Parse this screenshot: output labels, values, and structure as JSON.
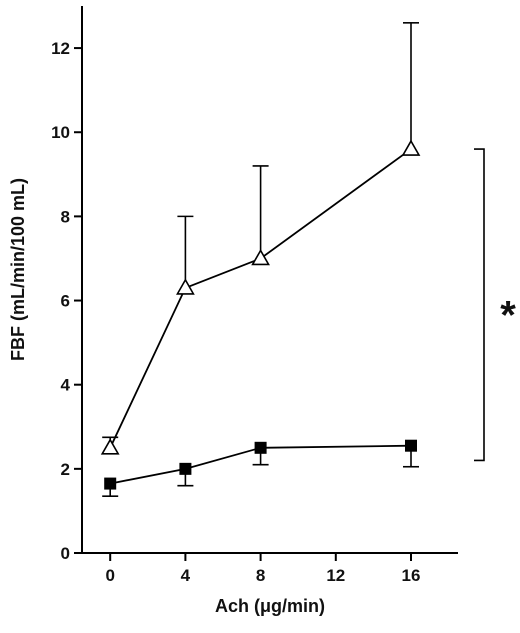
{
  "chart_data": {
    "type": "line",
    "xlabel": "Ach (μg/min)",
    "ylabel": "FBF (mL/min/100 mL)",
    "x_ticks": [
      "0",
      "4",
      "8",
      "12",
      "16"
    ],
    "y_ticks": [
      "0",
      "2",
      "4",
      "6",
      "8",
      "10",
      "12"
    ],
    "xlim": [
      -1.5,
      18.5
    ],
    "ylim": [
      0,
      13
    ],
    "grid": false,
    "series": [
      {
        "marker": "open-triangle",
        "x": [
          0,
          4,
          8,
          16
        ],
        "y": [
          2.5,
          6.3,
          7.0,
          9.6
        ],
        "error_upper": [
          0.25,
          1.7,
          2.2,
          3.0
        ]
      },
      {
        "marker": "filled-square",
        "x": [
          0,
          4,
          8,
          16
        ],
        "y": [
          1.65,
          2.0,
          2.5,
          2.55
        ],
        "error_lower": [
          0.3,
          0.4,
          0.4,
          0.5
        ]
      }
    ],
    "significance_label": "*"
  }
}
